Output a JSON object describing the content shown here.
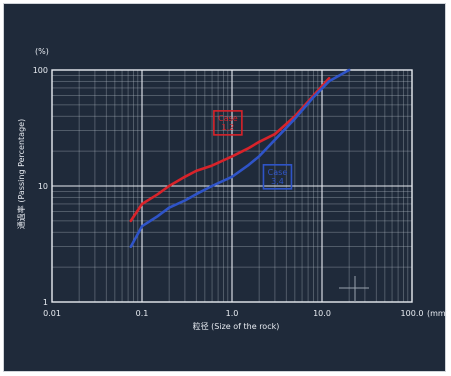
{
  "chart_data": {
    "type": "line",
    "x_scale": "log",
    "y_scale": "log",
    "xlim": [
      0.01,
      100
    ],
    "ylim": [
      1,
      100
    ],
    "grid": true,
    "y_unit": "(%)",
    "x_unit": "(mm)",
    "xlabel": "粒径 (Size of the rock)",
    "ylabel": "通過率 (Passing Percentage)",
    "x_ticks": [
      {
        "value": 0.01,
        "label": "0.01"
      },
      {
        "value": 0.1,
        "label": "0.1"
      },
      {
        "value": 1,
        "label": "1.0"
      },
      {
        "value": 10,
        "label": "10.0"
      },
      {
        "value": 100,
        "label": "100.0"
      }
    ],
    "y_ticks": [
      {
        "value": 1,
        "label": "1"
      },
      {
        "value": 10,
        "label": "10"
      },
      {
        "value": 100,
        "label": "100"
      }
    ],
    "series": [
      {
        "color": "#d8232a",
        "label_lines": [
          "Case",
          "1,2"
        ],
        "label_at": {
          "x": 0.9,
          "y": 35
        },
        "points": [
          [
            0.075,
            5.0
          ],
          [
            0.1,
            7.0
          ],
          [
            0.15,
            8.5
          ],
          [
            0.2,
            10.0
          ],
          [
            0.3,
            12.0
          ],
          [
            0.4,
            13.5
          ],
          [
            0.6,
            15.0
          ],
          [
            1.0,
            18.0
          ],
          [
            1.5,
            21.0
          ],
          [
            2.0,
            24.0
          ],
          [
            3.0,
            28.0
          ],
          [
            5.0,
            40.0
          ],
          [
            8.0,
            60.0
          ],
          [
            12.0,
            85.0
          ]
        ]
      },
      {
        "color": "#2f54c8",
        "label_lines": [
          "Case",
          "3,4"
        ],
        "label_at": {
          "x": 3.2,
          "y": 12.0
        },
        "points": [
          [
            0.075,
            3.0
          ],
          [
            0.1,
            4.5
          ],
          [
            0.15,
            5.5
          ],
          [
            0.2,
            6.5
          ],
          [
            0.3,
            7.5
          ],
          [
            0.4,
            8.5
          ],
          [
            0.6,
            10.0
          ],
          [
            1.0,
            12.0
          ],
          [
            1.5,
            15.0
          ],
          [
            2.0,
            18.0
          ],
          [
            3.0,
            25.0
          ],
          [
            5.0,
            38.0
          ],
          [
            8.0,
            58.0
          ],
          [
            12.0,
            80.0
          ],
          [
            20.0,
            100.0
          ]
        ]
      }
    ]
  }
}
